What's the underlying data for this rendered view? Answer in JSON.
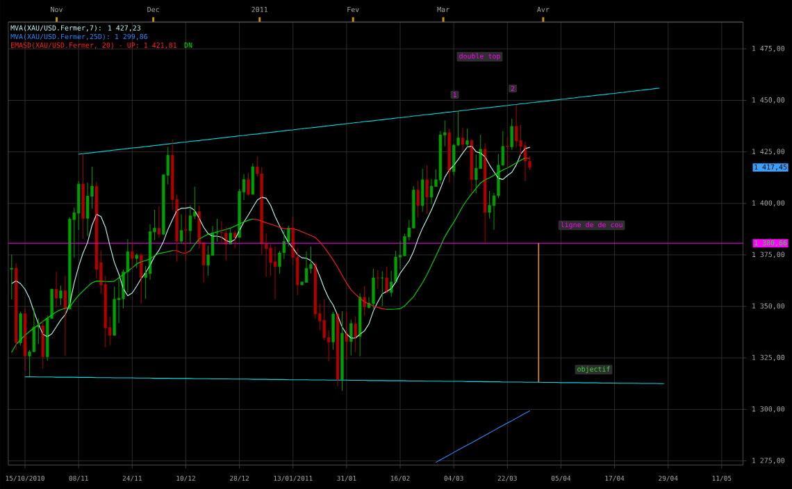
{
  "chart_data": {
    "type": "candlestick",
    "categories": [
      null,
      null,
      null,
      "15/10/2010",
      null,
      null,
      null,
      null,
      null,
      null,
      null,
      null,
      null,
      null,
      null,
      "08/11",
      null,
      null,
      null,
      null,
      null,
      null,
      null,
      null,
      null,
      null,
      null,
      "24/11",
      null,
      null,
      null,
      null,
      null,
      null,
      null,
      null,
      null,
      null,
      null,
      "10/12",
      null,
      null,
      null,
      null,
      null,
      null,
      null,
      null,
      null,
      null,
      null,
      "28/12",
      null,
      null,
      null,
      null,
      null,
      null,
      null,
      null,
      null,
      null,
      null,
      "13/01/2011",
      null,
      null,
      null,
      null,
      null,
      null,
      null,
      null,
      null,
      null,
      null,
      "31/01",
      null,
      null,
      null,
      null,
      null,
      null,
      null,
      null,
      null,
      null,
      null,
      "16/02",
      null,
      null,
      null,
      null,
      null,
      null,
      null,
      null,
      null,
      null,
      null,
      "04/03",
      null,
      null,
      null,
      null,
      null,
      null,
      null,
      null,
      null,
      null,
      null,
      "22/03",
      null,
      null,
      null,
      null,
      null,
      null,
      null,
      null,
      null,
      null,
      null,
      "05/04",
      null,
      null,
      null,
      null,
      null,
      null,
      null,
      null,
      null,
      null,
      null,
      "17/04",
      null,
      null,
      null,
      null,
      null,
      null,
      null,
      null,
      null,
      null,
      null,
      "29/04",
      null,
      null,
      null,
      null,
      null,
      null,
      null,
      null,
      null,
      null,
      null,
      "11/05",
      null,
      null,
      null,
      null
    ],
    "ohlc": [
      [
        1368.0,
        1375.2,
        1353.4,
        1368.5
      ],
      [
        1368.6,
        1370.9,
        1328.9,
        1332.3
      ],
      [
        1332.3,
        1347.5,
        1331.1,
        1346.5
      ],
      [
        1346.5,
        1349.2,
        1318.9,
        1325.9
      ],
      [
        1325.9,
        1328.9,
        1316.0,
        1328.0
      ],
      [
        1328.0,
        1349.2,
        1327.8,
        1340.0
      ],
      [
        1340.0,
        1344.2,
        1331.7,
        1340.8
      ],
      [
        1340.6,
        1343.4,
        1319.7,
        1325.5
      ],
      [
        1325.5,
        1345.6,
        1323.6,
        1344.2
      ],
      [
        1344.1,
        1358.5,
        1344.0,
        1358.4
      ],
      [
        1358.4,
        1366.8,
        1349.5,
        1354.0
      ],
      [
        1354.0,
        1360.1,
        1350.6,
        1357.6
      ],
      [
        1357.6,
        1364.8,
        1325.9,
        1348.8
      ],
      [
        1348.8,
        1393.3,
        1348.4,
        1392.4
      ],
      [
        1392.1,
        1398.0,
        1373.7,
        1395.5
      ],
      [
        1395.2,
        1410.8,
        1387.1,
        1409.4
      ],
      [
        1409.4,
        1424.0,
        1382.8,
        1392.7
      ],
      [
        1392.7,
        1410.1,
        1384.1,
        1403.6
      ],
      [
        1403.4,
        1417.8,
        1397.4,
        1408.4
      ],
      [
        1408.4,
        1410.5,
        1363.5,
        1367.9
      ],
      [
        1371.3,
        1377.1,
        1356.1,
        1360.3
      ],
      [
        1360.7,
        1364.8,
        1330.2,
        1339.5
      ],
      [
        1339.8,
        1345.1,
        1331.1,
        1335.9
      ],
      [
        1335.9,
        1359.6,
        1335.9,
        1353.5
      ],
      [
        1353.2,
        1363.5,
        1341.9,
        1354.0
      ],
      [
        1353.7,
        1367.9,
        1349.0,
        1366.8
      ],
      [
        1366.8,
        1382.6,
        1356.8,
        1376.6
      ],
      [
        1376.6,
        1381.3,
        1367.9,
        1373.2
      ],
      [
        1373.2,
        1375.7,
        1368.5,
        1374.9
      ],
      [
        1374.9,
        1375.7,
        1351.2,
        1364.0
      ],
      [
        1364.0,
        1369.6,
        1353.7,
        1366.3
      ],
      [
        1365.9,
        1389.9,
        1362.9,
        1386.3
      ],
      [
        1386.1,
        1396.9,
        1382.2,
        1388.0
      ],
      [
        1388.0,
        1398.6,
        1383.3,
        1385.0
      ],
      [
        1385.0,
        1414.1,
        1384.6,
        1413.9
      ],
      [
        1413.6,
        1427.5,
        1409.2,
        1423.4
      ],
      [
        1423.4,
        1431.1,
        1396.9,
        1401.8
      ],
      [
        1402.0,
        1404.4,
        1371.7,
        1381.7
      ],
      [
        1381.6,
        1394.7,
        1380.4,
        1386.9
      ],
      [
        1387.3,
        1394.7,
        1372.4,
        1386.9
      ],
      [
        1386.7,
        1399.2,
        1380.5,
        1394.0
      ],
      [
        1393.8,
        1408.1,
        1392.3,
        1396.0
      ],
      [
        1396.0,
        1398.9,
        1378.0,
        1380.8
      ],
      [
        1380.8,
        1381.5,
        1361.6,
        1370.0
      ],
      [
        1370.0,
        1379.4,
        1364.9,
        1375.0
      ],
      [
        1374.7,
        1389.1,
        1374.7,
        1385.6
      ],
      [
        1385.6,
        1392.5,
        1381.4,
        1385.9
      ],
      [
        1385.9,
        1391.4,
        1380.2,
        1385.7
      ],
      [
        1385.6,
        1388.6,
        1372.4,
        1380.2
      ],
      [
        1380.2,
        1388.3,
        1380.2,
        1385.6
      ],
      [
        1385.6,
        1386.9,
        1378.2,
        1383.4
      ],
      [
        1383.4,
        1407.0,
        1383.4,
        1405.9
      ],
      [
        1405.5,
        1414.2,
        1401.6,
        1411.6
      ],
      [
        1411.6,
        1414.8,
        1403.8,
        1404.4
      ],
      [
        1404.4,
        1419.4,
        1404.2,
        1417.8
      ],
      [
        1417.8,
        1422.8,
        1413.1,
        1414.4
      ],
      [
        1414.4,
        1417.5,
        1375.2,
        1380.5
      ],
      [
        1380.5,
        1385.5,
        1364.3,
        1378.0
      ],
      [
        1378.3,
        1380.2,
        1364.9,
        1371.3
      ],
      [
        1371.7,
        1379.1,
        1353.5,
        1369.3
      ],
      [
        1369.3,
        1376.9,
        1365.8,
        1376.0
      ],
      [
        1376.0,
        1387.1,
        1373.0,
        1381.6
      ],
      [
        1381.4,
        1389.1,
        1379.1,
        1388.0
      ],
      [
        1388.0,
        1393.6,
        1370.2,
        1373.8
      ],
      [
        1373.9,
        1378.3,
        1355.4,
        1360.4
      ],
      [
        1360.4,
        1361.9,
        1360.4,
        1361.9
      ],
      [
        1361.6,
        1376.7,
        1361.6,
        1368.5
      ],
      [
        1368.3,
        1379.1,
        1366.0,
        1370.4
      ],
      [
        1370.4,
        1371.3,
        1344.0,
        1346.3
      ],
      [
        1346.6,
        1351.3,
        1338.5,
        1342.9
      ],
      [
        1343.3,
        1353.5,
        1333.5,
        1334.8
      ],
      [
        1334.9,
        1338.5,
        1323.4,
        1332.7
      ],
      [
        1332.7,
        1347.4,
        1329.0,
        1346.3
      ],
      [
        1346.3,
        1346.8,
        1311.2,
        1314.5
      ],
      [
        1314.5,
        1347.7,
        1309.0,
        1337.0
      ],
      [
        1337.0,
        1347.4,
        1324.0,
        1332.9
      ],
      [
        1332.9,
        1343.5,
        1326.2,
        1341.7
      ],
      [
        1341.5,
        1345.2,
        1327.7,
        1335.1
      ],
      [
        1335.4,
        1356.4,
        1325.7,
        1354.5
      ],
      [
        1354.5,
        1360.0,
        1345.5,
        1349.7
      ],
      [
        1349.4,
        1354.5,
        1348.9,
        1351.6
      ],
      [
        1351.3,
        1368.3,
        1348.9,
        1363.9
      ],
      [
        1363.9,
        1367.7,
        1358.6,
        1363.8
      ],
      [
        1363.8,
        1367.0,
        1350.2,
        1363.9
      ],
      [
        1363.9,
        1369.4,
        1356.7,
        1356.7
      ],
      [
        1356.7,
        1367.3,
        1354.7,
        1361.9
      ],
      [
        1361.8,
        1377.0,
        1361.8,
        1374.0
      ],
      [
        1373.9,
        1381.9,
        1368.1,
        1374.8
      ],
      [
        1374.5,
        1385.3,
        1374.5,
        1384.0
      ],
      [
        1383.7,
        1392.0,
        1382.0,
        1388.1
      ],
      [
        1388.0,
        1408.4,
        1387.9,
        1406.5
      ],
      [
        1406.5,
        1411.0,
        1393.1,
        1398.9
      ],
      [
        1398.9,
        1416.8,
        1395.9,
        1411.5
      ],
      [
        1411.5,
        1418.5,
        1394.8,
        1403.0
      ],
      [
        1403.0,
        1411.8,
        1399.8,
        1408.4
      ],
      [
        1408.2,
        1416.6,
        1408.0,
        1411.5
      ],
      [
        1411.3,
        1435.2,
        1409.5,
        1433.3
      ],
      [
        1433.1,
        1440.3,
        1427.7,
        1434.4
      ],
      [
        1434.4,
        1436.1,
        1410.2,
        1415.4
      ],
      [
        1415.4,
        1428.8,
        1413.5,
        1428.3
      ],
      [
        1428.3,
        1445.0,
        1427.7,
        1431.8
      ],
      [
        1431.8,
        1436.6,
        1424.9,
        1428.6
      ],
      [
        1428.6,
        1436.3,
        1427.1,
        1430.5
      ],
      [
        1430.5,
        1431.1,
        1404.9,
        1411.5
      ],
      [
        1411.5,
        1423.8,
        1404.9,
        1417.1
      ],
      [
        1416.9,
        1433.3,
        1416.9,
        1426.3
      ],
      [
        1426.3,
        1429.2,
        1380.7,
        1395.6
      ],
      [
        1395.6,
        1406.0,
        1392.6,
        1399.1
      ],
      [
        1398.9,
        1405.1,
        1387.2,
        1403.7
      ],
      [
        1403.7,
        1424.0,
        1402.6,
        1418.6
      ],
      [
        1418.5,
        1435.0,
        1418.3,
        1427.7
      ],
      [
        1427.9,
        1432.2,
        1417.1,
        1427.5
      ],
      [
        1427.4,
        1441.1,
        1426.0,
        1437.4
      ],
      [
        1437.4,
        1447.8,
        1427.1,
        1430.3
      ],
      [
        1430.5,
        1438.1,
        1423.2,
        1427.7
      ],
      [
        1427.9,
        1429.9,
        1410.7,
        1420.5
      ],
      [
        1420.5,
        1422.9,
        1416.2,
        1417.45
      ],
      null,
      null,
      null,
      null,
      null,
      null,
      null,
      null,
      null,
      null,
      null,
      null,
      null,
      null,
      null,
      null,
      null,
      null,
      null,
      null,
      null,
      null,
      null,
      null,
      null,
      null,
      null,
      null,
      null,
      null,
      null,
      null,
      null,
      null,
      null,
      null,
      null,
      null,
      null,
      null,
      null,
      null,
      null,
      null,
      null,
      null,
      null
    ],
    "colors": [
      "#00a000",
      "#b00000",
      "#00a000",
      "#b00000",
      "#00a000",
      "#00a000",
      "#00a000",
      "#b00000",
      "#00a000",
      "#00a000",
      "#b00000",
      "#00a000",
      "#b00000",
      "#00a000",
      "#00a000",
      "#00a000",
      "#b00000",
      "#00a000",
      "#00a000",
      "#b00000",
      "#b00000",
      "#b00000",
      "#b00000",
      "#00a000",
      "#00a000",
      "#00a000",
      "#00a000",
      "#b00000",
      "#00a000",
      "#b00000",
      "#00a000",
      "#00a000",
      "#00a000",
      "#b00000",
      "#00a000",
      "#00a000",
      "#b00000",
      "#b00000",
      "#00a000",
      "#b00000",
      "#00a000",
      "#00a000",
      "#b00000",
      "#b00000",
      "#00a000",
      "#00a000",
      "#00a000",
      "#b00000",
      "#b00000",
      "#00a000",
      "#b00000",
      "#00a000",
      "#00a000",
      "#b00000",
      "#00a000",
      "#b00000",
      "#b00000",
      "#b00000",
      "#b00000",
      "#b00000",
      "#00a000",
      "#00a000",
      "#00a000",
      "#b00000",
      "#b00000",
      "#00a000",
      "#00a000",
      "#00a000",
      "#b00000",
      "#b00000",
      "#b00000",
      "#b00000",
      "#00a000",
      "#b00000",
      "#00a000",
      "#b00000",
      "#00a000",
      "#b00000",
      "#00a000",
      "#b00000",
      "#00a000",
      "#00a000",
      "#b00000",
      "#00a000",
      "#b00000",
      "#00a000",
      "#00a000",
      "#00a000",
      "#00a000",
      "#00a000",
      "#00a000",
      "#b00000",
      "#00a000",
      "#b00000",
      "#00a000",
      "#00a000",
      "#00a000",
      "#00a000",
      "#b00000",
      "#00a000",
      "#00a000",
      "#b00000",
      "#00a000",
      "#b00000",
      "#00a000",
      "#00a000",
      "#b00000",
      "#00a000",
      "#00a000",
      "#00a000",
      "#00a000",
      "#b00000",
      "#00a000",
      "#b00000",
      "#b00000",
      "#b00000",
      "#b00000",
      null,
      null,
      null,
      null,
      null,
      null,
      null,
      null,
      null,
      null,
      null,
      null,
      null,
      null,
      null,
      null,
      null,
      null,
      null,
      null,
      null,
      null,
      null,
      null,
      null,
      null,
      null,
      null,
      null,
      null,
      null,
      null,
      null,
      null,
      null,
      null,
      null,
      null,
      null,
      null,
      null,
      null,
      null,
      null,
      null,
      null,
      null
    ],
    "series": [
      {
        "type": "line",
        "name": "MVA(XAU/USD.Fermer,7): 1 427,23",
        "color": "#c8ffff",
        "values": [
          1361.1,
          1362.4,
          1361.0,
          1358.3,
          1353.9,
          1347.4,
          1341.4,
          1336.5,
          1335.3,
          1336.7,
          1340.1,
          1343.4,
          1346.0,
          1351.0,
          1361.4,
          1369.4,
          1376.0,
          1381.0,
          1389.4,
          1394.7,
          1393.6,
          1388.4,
          1379.5,
          1371.3,
          1365.7,
          1358.6,
          1355.2,
          1356.5,
          1359.8,
          1363.5,
          1366.4,
          1370.0,
          1374.2,
          1377.3,
          1381.5,
          1387.4,
          1392.1,
          1396.6,
          1397.6,
          1397.7,
          1398.1,
          1396.5,
          1392.8,
          1388.4,
          1385.3,
          1384.1,
          1384.1,
          1383.6,
          1382.0,
          1381.2,
          1382.5,
          1386.9,
          1390.9,
          1394.4,
          1398.1,
          1401.6,
          1403.0,
          1402.5,
          1399.0,
          1393.6,
          1389.1,
          1384.8,
          1380.9,
          1378.3,
          1375.1,
          1373.6,
          1373.4,
          1372.2,
          1369.8,
          1364.6,
          1358.7,
          1354.0,
          1350.6,
          1345.6,
          1340.0,
          1336.6,
          1334.6,
          1334.6,
          1336.5,
          1338.1,
          1341.5,
          1347.8,
          1352.2,
          1356.1,
          1357.3,
          1358.6,
          1361.8,
          1366.1,
          1369.1,
          1372.1,
          1376.7,
          1382.8,
          1388.0,
          1392.3,
          1396.8,
          1401.9,
          1407.1,
          1412.7,
          1416.2,
          1418.4,
          1421.3,
          1424.4,
          1427.3,
          1427.8,
          1425.1,
          1424.4,
          1422.6,
          1418.7,
          1415.3,
          1412.2,
          1411.6,
          1413.5,
          1415.1,
          1418.7,
          1424.0,
          1426.6,
          1427.2,
          null,
          null,
          null,
          null,
          null,
          null,
          null,
          null,
          null,
          null,
          null,
          null,
          null,
          null,
          null,
          null,
          null,
          null,
          null,
          null,
          null,
          null,
          null,
          null,
          null,
          null,
          null,
          null,
          null,
          null,
          null,
          null,
          null,
          null,
          null,
          null,
          null,
          null,
          null,
          null,
          null,
          null,
          null,
          null,
          null,
          null,
          null
        ]
      },
      {
        "type": "line",
        "name": "MVA(XAU/USD.Fermer,25D): 1 299,86",
        "color": "#2e8bff",
        "values": [
          null,
          null,
          null,
          null,
          null,
          null,
          null,
          null,
          null,
          null,
          null,
          null,
          null,
          null,
          null,
          null,
          null,
          null,
          null,
          null,
          null,
          null,
          null,
          null,
          null,
          null,
          null,
          null,
          null,
          null,
          null,
          null,
          null,
          null,
          null,
          null,
          null,
          null,
          null,
          null,
          null,
          null,
          null,
          null,
          null,
          null,
          null,
          null,
          null,
          null,
          null,
          null,
          null,
          null,
          null,
          null,
          null,
          null,
          null,
          null,
          null,
          null,
          null,
          null,
          null,
          null,
          null,
          null,
          null,
          null,
          null,
          null,
          null,
          null,
          null,
          null,
          null,
          null,
          null,
          null,
          null,
          null,
          null,
          null,
          null,
          null,
          null,
          null,
          null,
          null,
          null,
          null,
          null,
          null,
          null,
          1274.3,
          1275.5,
          1276.7,
          1277.9,
          1279.1,
          1280.3,
          1281.5,
          1282.7,
          1283.8,
          1285.0,
          1286.2,
          1287.4,
          1288.6,
          1289.8,
          1291.0,
          1292.2,
          1293.4,
          1294.5,
          1295.7,
          1296.9,
          1298.1,
          1299.3,
          null,
          null,
          null,
          null,
          null,
          null,
          null,
          null,
          null,
          null,
          null,
          null,
          null,
          null,
          null,
          null,
          null,
          null,
          null,
          null,
          null,
          null,
          null,
          null,
          null,
          null,
          null,
          null,
          null,
          null,
          null,
          null,
          null,
          null,
          null,
          null,
          null,
          null,
          null,
          null,
          null,
          null,
          null,
          null,
          null,
          null,
          null
        ]
      },
      {
        "type": "line",
        "name": "EMASD(XAU/USD.Fermer, 20) - UP: 1 421,81",
        "color": "#ff2020",
        "values": [
          null,
          null,
          null,
          null,
          null,
          null,
          null,
          null,
          null,
          null,
          null,
          null,
          null,
          null,
          null,
          null,
          null,
          null,
          null,
          null,
          null,
          null,
          null,
          null,
          null,
          null,
          null,
          null,
          null,
          null,
          null,
          null,
          null,
          null,
          null,
          null,
          1377.1,
          1377.1,
          1376.1,
          1375.8,
          1377.0,
          null,
          null,
          null,
          null,
          null,
          null,
          null,
          null,
          null,
          null,
          null,
          null,
          null,
          1392.4,
          1392.1,
          1391.3,
          1390.6,
          1389.9,
          1389.2,
          1388.4,
          1387.7,
          1387.7,
          1387.7,
          1387.1,
          1386.2,
          1385.3,
          1384.4,
          1383.4,
          1381.3,
          1378.7,
          1375.6,
          1372.4,
          1369.0,
          1365.1,
          1361.3,
          1358.1,
          1355.9,
          1353.9,
          1352.2,
          1351.2,
          1350.2,
          1349.5,
          1348.9,
          1348.6,
          null,
          null,
          null,
          null,
          null,
          null,
          null,
          null,
          null,
          null,
          null,
          null,
          null,
          null,
          null,
          null,
          null,
          null,
          null,
          null,
          null,
          null,
          null,
          null,
          null,
          null,
          null,
          null,
          null,
          null,
          1422.0,
          1421.8,
          null,
          null,
          null,
          null,
          null,
          null,
          null,
          null,
          null,
          null,
          null,
          null,
          null,
          null,
          null,
          null,
          null,
          null,
          null,
          null,
          null,
          null,
          null,
          null,
          null,
          null,
          null,
          null,
          null,
          null,
          null,
          null,
          null,
          null,
          null,
          null,
          null,
          null,
          null,
          null,
          null,
          null,
          null,
          null,
          null,
          null,
          null
        ]
      },
      {
        "type": "line",
        "name": "DN",
        "color": "#00e000",
        "values": [
          1327.8,
          1331.5,
          1333.8,
          1336.0,
          1337.8,
          1339.5,
          1341.1,
          1342.7,
          1344.3,
          1345.9,
          1347.3,
          1348.4,
          1349.0,
          1349.6,
          1352.7,
          1355.4,
          1357.5,
          1359.6,
          1361.5,
          1362.3,
          1362.2,
          1362.1,
          1362.0,
          1362.2,
          1363.9,
          1365.5,
          1367.1,
          1368.7,
          1370.6,
          1371.7,
          1372.2,
          1373.1,
          1374.6,
          1375.7,
          1376.1,
          1376.5,
          1377.1,
          null,
          null,
          null,
          1377.0,
          1380.1,
          1382.7,
          1383.9,
          1385.0,
          1385.6,
          1386.2,
          1386.8,
          1387.4,
          1388.0,
          1389.0,
          1390.1,
          1391.0,
          1391.8,
          1392.4,
          null,
          null,
          null,
          null,
          null,
          null,
          null,
          null,
          null,
          null,
          null,
          null,
          null,
          null,
          null,
          null,
          null,
          null,
          null,
          null,
          null,
          null,
          null,
          null,
          null,
          null,
          null,
          null,
          null,
          1348.6,
          1348.6,
          1348.7,
          1348.9,
          1350.2,
          1352.5,
          1354.7,
          1358.1,
          1361.5,
          1365.4,
          1369.9,
          1374.4,
          1379.1,
          1383.8,
          1387.5,
          1390.8,
          1394.7,
          1398.6,
          1401.8,
          1404.6,
          1407.3,
          1409.9,
          1411.5,
          1412.4,
          1413.6,
          1415.0,
          1416.2,
          1417.2,
          1418.4,
          1419.7,
          1420.9,
          1422.0,
          null,
          null,
          null,
          null,
          null,
          null,
          null,
          null,
          null,
          null,
          null,
          null,
          null,
          null,
          null,
          null,
          null,
          null,
          null,
          null,
          null,
          null,
          null,
          null,
          null,
          null,
          null,
          null,
          null,
          null,
          null,
          null,
          null,
          null,
          null,
          null,
          null,
          null,
          null,
          null,
          null,
          null,
          null,
          null,
          null,
          null,
          null,
          null
        ]
      },
      {
        "type": "line",
        "color": "#00e0e8",
        "values": [
          null,
          null,
          null,
          null,
          null,
          null,
          null,
          null,
          null,
          null,
          null,
          null,
          null,
          null,
          null,
          1423.9,
          1424.1,
          1424.4,
          1424.6,
          1424.9,
          1425.1,
          1425.4,
          1425.6,
          1425.9,
          1426.1,
          1426.4,
          1426.6,
          1426.9,
          1427.1,
          1427.3,
          1427.6,
          1427.8,
          1428.1,
          1428.3,
          1428.6,
          1428.8,
          1429.1,
          1429.3,
          1429.6,
          1429.8,
          1430.1,
          1430.3,
          1430.5,
          1430.8,
          1431.0,
          1431.3,
          1431.5,
          1431.8,
          1432.0,
          1432.3,
          1432.5,
          1432.8,
          1433.0,
          1433.3,
          1433.5,
          1433.7,
          1434.0,
          1434.2,
          1434.5,
          1434.7,
          1435.0,
          1435.2,
          1435.5,
          1435.7,
          1436.0,
          1436.2,
          1436.5,
          1436.7,
          1436.9,
          1437.2,
          1437.4,
          1437.7,
          1437.9,
          1438.2,
          1438.4,
          1438.7,
          1438.9,
          1439.2,
          1439.4,
          1439.7,
          1439.9,
          1440.1,
          1440.4,
          1440.6,
          1440.9,
          1441.1,
          1441.4,
          1441.6,
          1441.9,
          1442.1,
          1442.4,
          1442.6,
          1442.9,
          1443.1,
          1443.3,
          1443.6,
          1443.8,
          1444.1,
          1444.3,
          1444.6,
          1444.8,
          1445.1,
          1445.3,
          1445.6,
          1445.8,
          1446.1,
          1446.3,
          1446.5,
          1446.8,
          1447.0,
          1447.3,
          1447.5,
          1447.8,
          1448.0,
          1448.3,
          1448.5,
          1448.8,
          1449.0,
          1449.3,
          1449.5,
          1449.7,
          1450.0,
          1450.2,
          1450.5,
          1450.7,
          1451.0,
          1451.2,
          1451.5,
          1451.7,
          1452.0,
          1452.2,
          1452.5,
          1452.7,
          1452.9,
          1453.2,
          1453.4,
          1453.7,
          1453.9,
          1454.2,
          1454.4,
          1454.7,
          1454.9,
          1455.2,
          1455.4,
          1455.7,
          1455.9,
          null,
          null,
          null,
          null,
          null,
          null,
          null,
          null,
          null,
          null,
          null,
          null,
          null,
          null,
          null,
          null,
          null,
          null
        ]
      },
      {
        "type": "line",
        "color": "#00e0e8",
        "values": [
          null,
          null,
          null,
          1315.8,
          1315.8,
          1315.8,
          1315.7,
          1315.7,
          1315.7,
          1315.7,
          1315.6,
          1315.6,
          1315.6,
          1315.6,
          1315.6,
          1315.5,
          1315.5,
          1315.5,
          1315.5,
          1315.4,
          1315.4,
          1315.4,
          1315.4,
          1315.3,
          1315.3,
          1315.3,
          1315.3,
          1315.3,
          1315.2,
          1315.2,
          1315.2,
          1315.2,
          1315.1,
          1315.1,
          1315.1,
          1315.1,
          1315.0,
          1315.0,
          1315.0,
          1315.0,
          1315.0,
          1314.9,
          1314.9,
          1314.9,
          1314.9,
          1314.8,
          1314.8,
          1314.8,
          1314.8,
          1314.7,
          1314.7,
          1314.7,
          1314.7,
          1314.7,
          1314.6,
          1314.6,
          1314.6,
          1314.6,
          1314.5,
          1314.5,
          1314.5,
          1314.5,
          1314.4,
          1314.4,
          1314.4,
          1314.4,
          1314.4,
          1314.3,
          1314.3,
          1314.3,
          1314.3,
          1314.2,
          1314.2,
          1314.2,
          1314.2,
          1314.2,
          1314.1,
          1314.1,
          1314.1,
          1314.1,
          1314.0,
          1314.0,
          1314.0,
          1314.0,
          1313.9,
          1313.9,
          1313.9,
          1313.9,
          1313.9,
          1313.8,
          1313.8,
          1313.8,
          1313.8,
          1313.7,
          1313.7,
          1313.7,
          1313.7,
          1313.6,
          1313.6,
          1313.6,
          1313.6,
          1313.6,
          1313.5,
          1313.5,
          1313.5,
          1313.5,
          1313.4,
          1313.4,
          1313.4,
          1313.4,
          1313.3,
          1313.3,
          1313.3,
          1313.3,
          1313.3,
          1313.2,
          1313.2,
          1313.2,
          1313.2,
          1313.1,
          1313.1,
          1313.1,
          1313.1,
          1313.0,
          1313.0,
          1313.0,
          1313.0,
          1313.0,
          1312.9,
          1312.9,
          1312.9,
          1312.9,
          1312.8,
          1312.8,
          1312.8,
          1312.8,
          1312.7,
          1312.7,
          1312.7,
          1312.7,
          1312.7,
          1312.6,
          1312.6,
          1312.6,
          1312.6,
          1312.5,
          1312.5,
          null,
          null,
          null,
          null,
          null,
          null,
          null,
          null,
          null,
          null,
          null,
          null,
          null,
          null,
          null,
          null,
          null
        ]
      },
      {
        "type": "bar",
        "color": "#e08a3c",
        "values": [
          null,
          null,
          null,
          null,
          null,
          null,
          null,
          null,
          null,
          null,
          null,
          null,
          null,
          null,
          null,
          null,
          null,
          null,
          null,
          null,
          null,
          null,
          null,
          null,
          null,
          null,
          null,
          null,
          null,
          null,
          null,
          null,
          null,
          null,
          null,
          null,
          null,
          null,
          null,
          null,
          null,
          null,
          null,
          null,
          null,
          null,
          null,
          null,
          null,
          null,
          null,
          null,
          null,
          null,
          null,
          null,
          null,
          null,
          null,
          null,
          null,
          null,
          null,
          null,
          null,
          null,
          null,
          null,
          null,
          null,
          null,
          null,
          null,
          null,
          null,
          null,
          null,
          null,
          null,
          null,
          null,
          null,
          null,
          null,
          null,
          null,
          null,
          null,
          null,
          null,
          null,
          null,
          null,
          null,
          null,
          null,
          null,
          null,
          null,
          null,
          null,
          null,
          null,
          null,
          null,
          null,
          null,
          null,
          null,
          null,
          null,
          null,
          null,
          null,
          null,
          null,
          null,
          null,
          67.5,
          null,
          null,
          null,
          null,
          null,
          null,
          null,
          null,
          null,
          null,
          null,
          null,
          null,
          null,
          null,
          null,
          null,
          null,
          null,
          null,
          null,
          null,
          null,
          null,
          null,
          null,
          null,
          null,
          null,
          null,
          null,
          null,
          null,
          null,
          null,
          null,
          null,
          null,
          null,
          null,
          null,
          null,
          null,
          null,
          null
        ],
        "base": [
          null,
          null,
          null,
          null,
          null,
          null,
          null,
          null,
          null,
          null,
          null,
          null,
          null,
          null,
          null,
          null,
          null,
          null,
          null,
          null,
          null,
          null,
          null,
          null,
          null,
          null,
          null,
          null,
          null,
          null,
          null,
          null,
          null,
          null,
          null,
          null,
          null,
          null,
          null,
          null,
          null,
          null,
          null,
          null,
          null,
          null,
          null,
          null,
          null,
          null,
          null,
          null,
          null,
          null,
          null,
          null,
          null,
          null,
          null,
          null,
          null,
          null,
          null,
          null,
          null,
          null,
          null,
          null,
          null,
          null,
          null,
          null,
          null,
          null,
          null,
          null,
          null,
          null,
          null,
          null,
          null,
          null,
          null,
          null,
          null,
          null,
          null,
          null,
          null,
          null,
          null,
          null,
          null,
          null,
          null,
          null,
          null,
          null,
          null,
          null,
          null,
          null,
          null,
          null,
          null,
          null,
          null,
          null,
          null,
          null,
          null,
          null,
          null,
          null,
          null,
          null,
          null,
          null,
          1313.2,
          null,
          null,
          null,
          null,
          null,
          null,
          null,
          null,
          null,
          null,
          null,
          null,
          null,
          null,
          null,
          null,
          null,
          null,
          null,
          null,
          null,
          null,
          null,
          null,
          null,
          null,
          null,
          null,
          null,
          null,
          null,
          null,
          null,
          null,
          null,
          null,
          null,
          null,
          null,
          null,
          null,
          null,
          null,
          null,
          null
        ]
      }
    ],
    "x2lim": [
      "2010-10-17",
      "2011-06-02"
    ],
    "x2ticks": [
      {
        "value": "2010-11-01",
        "label": "Nov"
      },
      {
        "value": "2010-12-01",
        "label": "Dec"
      },
      {
        "value": "2011-01-03",
        "label": "2011"
      },
      {
        "value": "2011-02-01",
        "label": "Fev"
      },
      {
        "value": "2011-03-01",
        "label": "Mar"
      },
      {
        "value": "2011-04-01",
        "label": "Avr"
      }
    ],
    "ylim": [
      1273,
      1488
    ],
    "yticks": [
      {
        "value": 1275,
        "label": "1 275,00"
      },
      {
        "value": 1300,
        "label": "1 300,00"
      },
      {
        "value": 1325,
        "label": "1 325,00"
      },
      {
        "value": 1350,
        "label": "1 350,00"
      },
      {
        "value": 1375,
        "label": "1 375,00"
      },
      {
        "value": 1400,
        "label": "1 400,00"
      },
      {
        "value": 1425,
        "label": "1 425,00"
      },
      {
        "value": 1450,
        "label": "1 450,00"
      },
      {
        "value": 1475,
        "label": "1 475,00"
      }
    ],
    "grid": true,
    "legend": "top left",
    "ref_lines": [
      {
        "axis": "y",
        "value": 1380.66,
        "label": "1 380,66",
        "color": "#ff00ff"
      }
    ],
    "annotations": [
      "double top",
      "1",
      "2",
      "ligne de de cou",
      "objectif",
      "1 417,45"
    ]
  }
}
